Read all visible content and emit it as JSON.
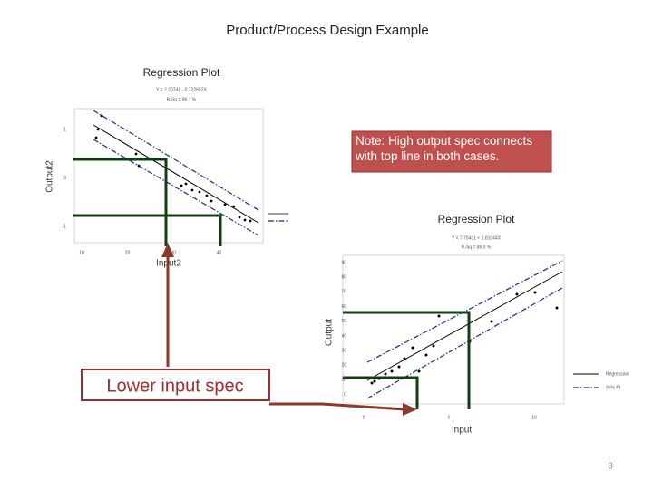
{
  "title": "Product/Process Design Example",
  "note": "Note:  High output spec connects with top line in both cases.",
  "callout": "Lower input spec",
  "page_number": "8",
  "plot1": {
    "title": "Regression Plot",
    "equation": "Y = 2.20741 - 0.722652X",
    "r_sq": "R-Sq = 86.1 %",
    "x_label": "Input2",
    "y_label": "Output2",
    "x_ticks": [
      "10",
      "20",
      "30",
      "40"
    ],
    "y_ticks": [
      "1",
      "0",
      "-1"
    ]
  },
  "plot2": {
    "title": "Regression Plot",
    "equation": "Y = 7.75431 + 3.81044X",
    "r_sq": "R-Sq = 89.0 %",
    "x_label": "Input",
    "y_label": "Output",
    "x_ticks": [
      "0",
      "5",
      "10"
    ],
    "y_ticks": [
      "90",
      "80",
      "70",
      "60",
      "50",
      "40",
      "30",
      "20",
      "10",
      "0"
    ],
    "legend": [
      "Regression",
      "95% PI"
    ]
  }
}
